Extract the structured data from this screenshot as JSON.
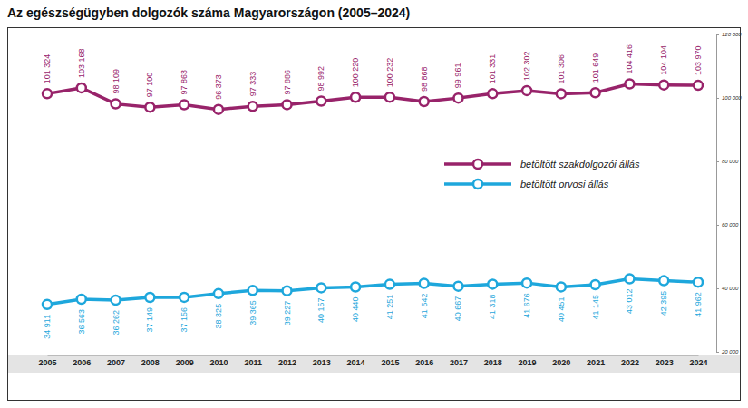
{
  "chart_data": {
    "type": "line",
    "title": "Az egészségügyben dolgozók száma Magyarországon (2005–2024)",
    "categories": [
      "2005",
      "2006",
      "2007",
      "2008",
      "2009",
      "2010",
      "2011",
      "2012",
      "2013",
      "2014",
      "2015",
      "2016",
      "2017",
      "2018",
      "2019",
      "2020",
      "2021",
      "2022",
      "2023",
      "2024"
    ],
    "series": [
      {
        "name": "betöltött szakdolgozói állás",
        "color": "#98236a",
        "marker": "circle",
        "values": [
          101324,
          103168,
          98109,
          97100,
          97863,
          96373,
          97333,
          97886,
          98992,
          100220,
          100232,
          98868,
          99961,
          101331,
          102302,
          101306,
          101649,
          104416,
          104104,
          103970
        ],
        "value_labels": [
          "101 324",
          "103 168",
          "98 109",
          "97 100",
          "97 863",
          "96 373",
          "97 333",
          "97 886",
          "98 992",
          "100 220",
          "100 232",
          "98 868",
          "99 961",
          "101 331",
          "102 302",
          "101 306",
          "101 649",
          "104 416",
          "104 104",
          "103 970"
        ]
      },
      {
        "name": "betöltött orvosi állás",
        "color": "#1ea7dc",
        "marker": "circle",
        "values": [
          34911,
          36563,
          36262,
          37149,
          37156,
          38325,
          39365,
          39227,
          40157,
          40440,
          41251,
          41542,
          40667,
          41318,
          41676,
          40451,
          41145,
          43012,
          42395,
          41962
        ],
        "value_labels": [
          "34 911",
          "36 563",
          "36 262",
          "37 149",
          "37 156",
          "38 325",
          "39 365",
          "39 227",
          "40 157",
          "40 440",
          "41 251",
          "41 542",
          "40 667",
          "41 318",
          "41 676",
          "40 451",
          "41 145",
          "43 012",
          "42 395",
          "41 962"
        ]
      }
    ],
    "ylim": [
      20000,
      120000
    ],
    "yticks": [
      {
        "value": 20000,
        "label": "20 000"
      },
      {
        "value": 40000,
        "label": "40 000"
      },
      {
        "value": 60000,
        "label": "60 000"
      },
      {
        "value": 80000,
        "label": "80 000"
      },
      {
        "value": 100000,
        "label": "100 000"
      },
      {
        "value": 120000,
        "label": "120 000"
      }
    ],
    "grid": false,
    "legend": "right",
    "data_labels": true
  }
}
